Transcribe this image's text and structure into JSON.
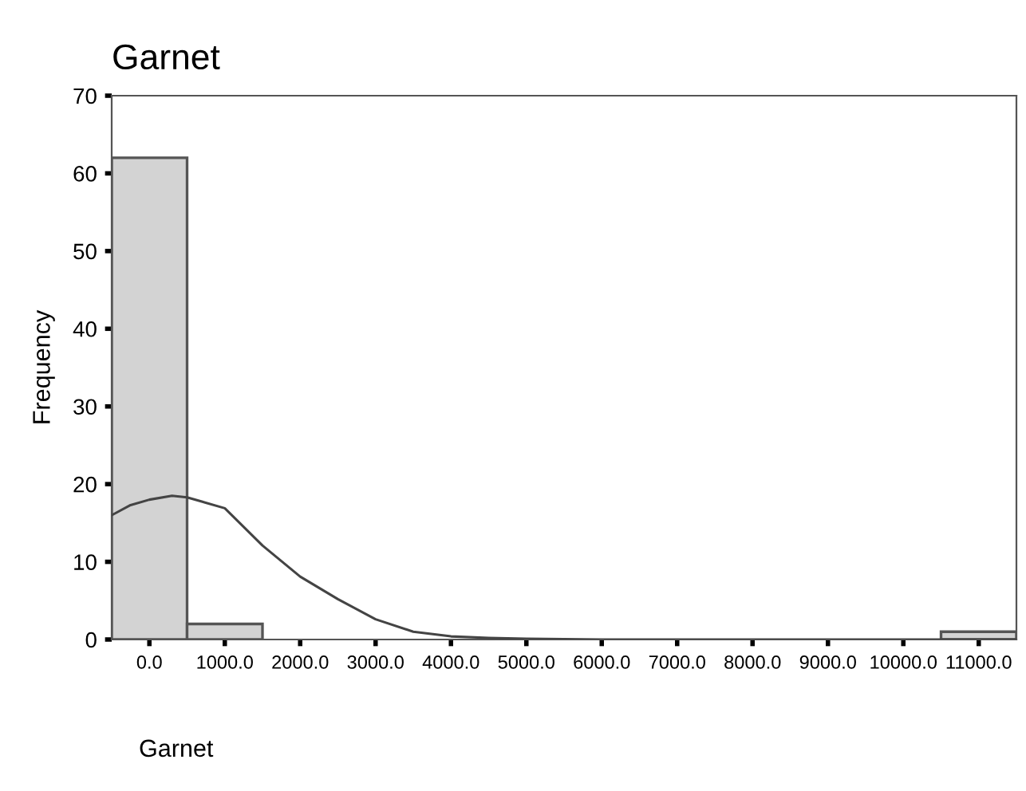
{
  "chart_data": [
    {
      "type": "histogram",
      "title": "Garnet",
      "xlabel": "Garnet",
      "ylabel": "Frequency",
      "bins": [
        -500,
        500,
        1500,
        2500,
        3500,
        4500,
        5500,
        6500,
        7500,
        8500,
        9500,
        10500,
        11500
      ],
      "values": [
        62,
        2,
        0,
        0,
        0,
        0,
        0,
        0,
        0,
        0,
        0,
        1
      ],
      "color": "#d3d3d3",
      "xlim": [
        -500,
        11500
      ],
      "ylim": [
        0,
        70
      ],
      "xticks": [
        {
          "value": 0,
          "label": "0.0"
        },
        {
          "value": 1000,
          "label": "1000.0"
        },
        {
          "value": 2000,
          "label": "2000.0"
        },
        {
          "value": 3000,
          "label": "3000.0"
        },
        {
          "value": 4000,
          "label": "4000.0"
        },
        {
          "value": 5000,
          "label": "5000.0"
        },
        {
          "value": 6000,
          "label": "6000.0"
        },
        {
          "value": 7000,
          "label": "7000.0"
        },
        {
          "value": 8000,
          "label": "8000.0"
        },
        {
          "value": 9000,
          "label": "9000.0"
        },
        {
          "value": 10000,
          "label": "10000.0"
        },
        {
          "value": 11000,
          "label": "11000.0"
        }
      ],
      "yticks": [
        0,
        10,
        20,
        30,
        40,
        50,
        60,
        70
      ],
      "grid": false,
      "legend": false,
      "series": [
        {
          "type": "line",
          "color": "#444444",
          "x": [
            -500,
            -250,
            0,
            300,
            500,
            1000,
            1500,
            2000,
            2500,
            3000,
            3500,
            4000,
            4500,
            5000,
            6000,
            11500
          ],
          "values": [
            16,
            17.3,
            18,
            18.5,
            18.3,
            16.9,
            12.1,
            8.1,
            5.2,
            2.6,
            1.0,
            0.4,
            0.2,
            0.1,
            0,
            0
          ]
        }
      ]
    }
  ]
}
